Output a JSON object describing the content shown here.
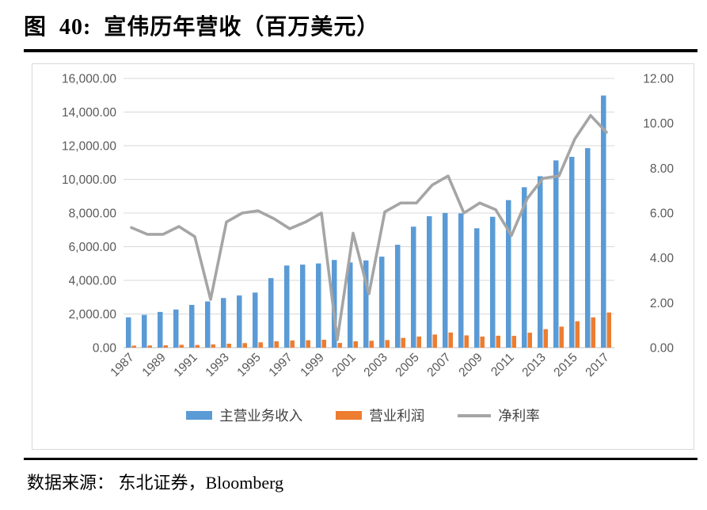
{
  "figure": {
    "title": "图  40:  宣伟历年营收（百万美元）",
    "source": "数据来源： 东北证券，Bloomberg"
  },
  "chart_data": {
    "type": "bar",
    "subtype": "combo-bar-line-dual-axis",
    "title": "宣伟历年营收（百万美元）",
    "xlabel": "",
    "ylabel_left": "",
    "ylabel_right": "",
    "grid": true,
    "legend_position": "bottom",
    "categories": [
      1987,
      1988,
      1989,
      1990,
      1991,
      1992,
      1993,
      1994,
      1995,
      1996,
      1997,
      1998,
      1999,
      2000,
      2001,
      2002,
      2003,
      2004,
      2005,
      2006,
      2007,
      2008,
      2009,
      2010,
      2011,
      2012,
      2013,
      2014,
      2015,
      2016,
      2017
    ],
    "series": [
      {
        "name": "主营业务收入",
        "type": "bar",
        "axis": "left",
        "color": "#5B9BD5",
        "values": [
          1801,
          1950,
          2123,
          2267,
          2541,
          2748,
          2949,
          3100,
          3274,
          4133,
          4881,
          4934,
          5004,
          5212,
          5066,
          5185,
          5408,
          6114,
          7191,
          7810,
          8005,
          7980,
          7094,
          7776,
          8766,
          9534,
          10186,
          11130,
          11339,
          11856,
          14984
        ]
      },
      {
        "name": "营业利润",
        "type": "bar",
        "axis": "left",
        "color": "#ED7D31",
        "values": [
          120,
          130,
          140,
          170,
          160,
          195,
          235,
          270,
          315,
          380,
          425,
          440,
          470,
          280,
          380,
          410,
          450,
          580,
          660,
          780,
          900,
          730,
          660,
          710,
          700,
          890,
          1100,
          1250,
          1570,
          1800,
          2090
        ]
      },
      {
        "name": "净利率",
        "type": "line",
        "axis": "right",
        "color": "#A5A5A5",
        "values": [
          5.35,
          5.05,
          5.05,
          5.4,
          4.95,
          2.15,
          5.6,
          6.0,
          6.1,
          5.75,
          5.3,
          5.6,
          6.0,
          0.35,
          5.1,
          2.4,
          6.05,
          6.45,
          6.45,
          7.25,
          7.65,
          6.0,
          6.45,
          6.15,
          5.0,
          6.65,
          7.55,
          7.65,
          9.3,
          10.35,
          9.6
        ]
      }
    ],
    "left_axis": {
      "min": 0,
      "max": 16000,
      "step": 2000,
      "tick_labels": [
        "0.00",
        "2,000.00",
        "4,000.00",
        "6,000.00",
        "8,000.00",
        "10,000.00",
        "12,000.00",
        "14,000.00",
        "16,000.00"
      ]
    },
    "right_axis": {
      "min": 0,
      "max": 12,
      "step": 2,
      "tick_labels": [
        "0.00",
        "2.00",
        "4.00",
        "6.00",
        "8.00",
        "10.00",
        "12.00"
      ]
    },
    "x_tick_labels": [
      "1987",
      "1989",
      "1991",
      "1993",
      "1995",
      "1997",
      "1999",
      "2001",
      "2003",
      "2005",
      "2007",
      "2009",
      "2011",
      "2013",
      "2015",
      "2017"
    ]
  },
  "colors": {
    "revenue_bar": "#5B9BD5",
    "profit_bar": "#ED7D31",
    "margin_line": "#A5A5A5",
    "gridline": "#D9D9D9",
    "axis_text": "#595959",
    "rule": "#000000"
  }
}
